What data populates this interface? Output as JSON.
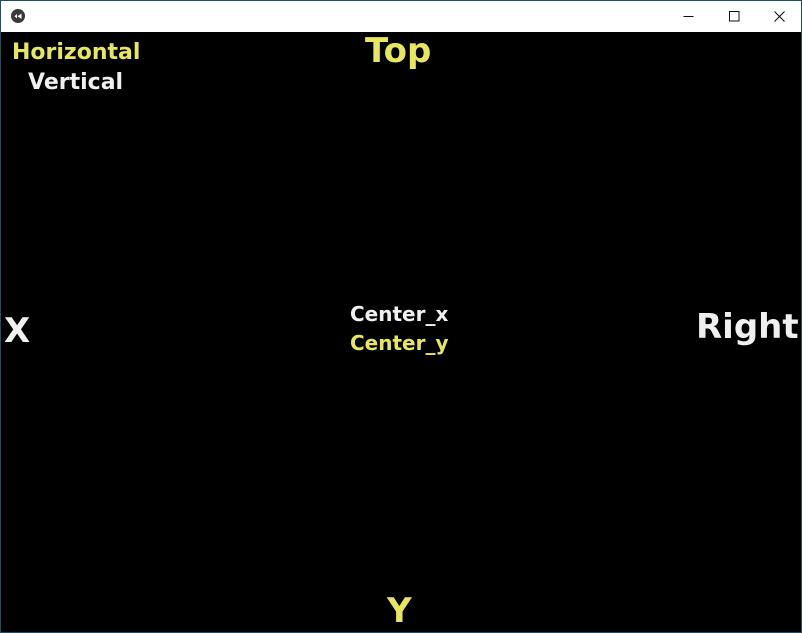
{
  "window": {
    "icon": "kivy-app-icon",
    "controls": {
      "minimize_icon": "minimize-icon",
      "maximize_icon": "maximize-icon",
      "close_icon": "close-icon"
    }
  },
  "labels": {
    "horizontal": "Horizontal",
    "vertical": "Vertical",
    "top": "Top",
    "x": "X",
    "right": "Right",
    "center_x": "Center_x",
    "center_y": "Center_y",
    "y": "Y"
  },
  "colors": {
    "background": "#000000",
    "yellow_text": "#e6e65f",
    "white_text": "#f0f0f0",
    "titlebar": "#ffffff"
  }
}
